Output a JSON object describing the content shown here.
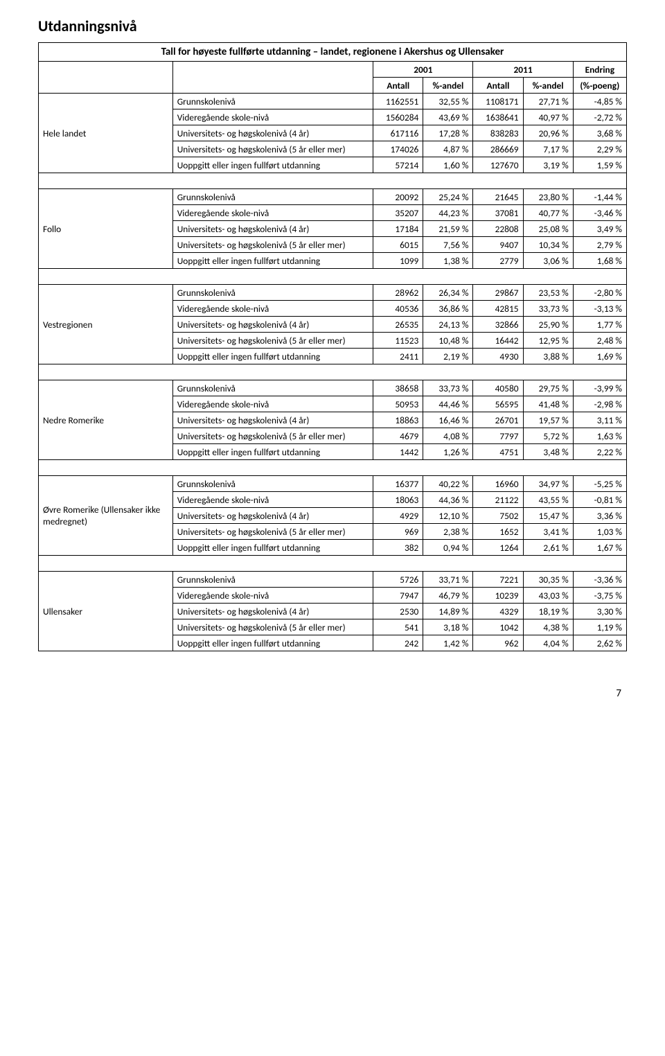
{
  "page_title": "Utdanningsnivå",
  "table_title": "Tall for høyeste fullførte utdanning – landet, regionene i Akershus og Ullensaker",
  "headers": {
    "year1": "2001",
    "year2": "2011",
    "endring": "Endring",
    "antall": "Antall",
    "andel": "%-andel",
    "poeng": "(%-poeng)"
  },
  "row_labels": {
    "grunn": "Grunnskolenivå",
    "vgs": "Videregående skole-nivå",
    "uh4": "Universitets- og høgskolenivå (4 år)",
    "uh5": "Universitets- og høgskolenivå (5 år eller mer)",
    "uopp": "Uoppgitt eller ingen fullført utdanning"
  },
  "regions": [
    {
      "name": "Hele landet",
      "rows": [
        [
          "grunn",
          "1162551",
          "32,55 %",
          "1108171",
          "27,71 %",
          "-4,85 %"
        ],
        [
          "vgs",
          "1560284",
          "43,69 %",
          "1638641",
          "40,97 %",
          "-2,72 %"
        ],
        [
          "uh4",
          "617116",
          "17,28 %",
          "838283",
          "20,96 %",
          "3,68 %"
        ],
        [
          "uh5",
          "174026",
          "4,87 %",
          "286669",
          "7,17 %",
          "2,29 %"
        ],
        [
          "uopp",
          "57214",
          "1,60 %",
          "127670",
          "3,19 %",
          "1,59 %"
        ]
      ]
    },
    {
      "name": "Follo",
      "rows": [
        [
          "grunn",
          "20092",
          "25,24 %",
          "21645",
          "23,80 %",
          "-1,44 %"
        ],
        [
          "vgs",
          "35207",
          "44,23 %",
          "37081",
          "40,77 %",
          "-3,46 %"
        ],
        [
          "uh4",
          "17184",
          "21,59 %",
          "22808",
          "25,08 %",
          "3,49 %"
        ],
        [
          "uh5",
          "6015",
          "7,56 %",
          "9407",
          "10,34 %",
          "2,79 %"
        ],
        [
          "uopp",
          "1099",
          "1,38 %",
          "2779",
          "3,06 %",
          "1,68 %"
        ]
      ]
    },
    {
      "name": "Vestregionen",
      "rows": [
        [
          "grunn",
          "28962",
          "26,34 %",
          "29867",
          "23,53 %",
          "-2,80 %"
        ],
        [
          "vgs",
          "40536",
          "36,86 %",
          "42815",
          "33,73 %",
          "-3,13 %"
        ],
        [
          "uh4",
          "26535",
          "24,13 %",
          "32866",
          "25,90 %",
          "1,77 %"
        ],
        [
          "uh5",
          "11523",
          "10,48 %",
          "16442",
          "12,95 %",
          "2,48 %"
        ],
        [
          "uopp",
          "2411",
          "2,19 %",
          "4930",
          "3,88 %",
          "1,69 %"
        ]
      ]
    },
    {
      "name": "Nedre Romerike",
      "rows": [
        [
          "grunn",
          "38658",
          "33,73 %",
          "40580",
          "29,75 %",
          "-3,99 %"
        ],
        [
          "vgs",
          "50953",
          "44,46 %",
          "56595",
          "41,48 %",
          "-2,98 %"
        ],
        [
          "uh4",
          "18863",
          "16,46 %",
          "26701",
          "19,57 %",
          "3,11 %"
        ],
        [
          "uh5",
          "4679",
          "4,08 %",
          "7797",
          "5,72 %",
          "1,63 %"
        ],
        [
          "uopp",
          "1442",
          "1,26 %",
          "4751",
          "3,48 %",
          "2,22 %"
        ]
      ]
    },
    {
      "name": "Øvre Romerike (Ullensaker ikke medregnet)",
      "rows": [
        [
          "grunn",
          "16377",
          "40,22 %",
          "16960",
          "34,97 %",
          "-5,25 %"
        ],
        [
          "vgs",
          "18063",
          "44,36 %",
          "21122",
          "43,55 %",
          "-0,81 %"
        ],
        [
          "uh4",
          "4929",
          "12,10 %",
          "7502",
          "15,47 %",
          "3,36 %"
        ],
        [
          "uh5",
          "969",
          "2,38 %",
          "1652",
          "3,41 %",
          "1,03 %"
        ],
        [
          "uopp",
          "382",
          "0,94 %",
          "1264",
          "2,61 %",
          "1,67 %"
        ]
      ]
    },
    {
      "name": "Ullensaker",
      "rows": [
        [
          "grunn",
          "5726",
          "33,71 %",
          "7221",
          "30,35 %",
          "-3,36 %"
        ],
        [
          "vgs",
          "7947",
          "46,79 %",
          "10239",
          "43,03 %",
          "-3,75 %"
        ],
        [
          "uh4",
          "2530",
          "14,89 %",
          "4329",
          "18,19 %",
          "3,30 %"
        ],
        [
          "uh5",
          "541",
          "3,18 %",
          "1042",
          "4,38 %",
          "1,19 %"
        ],
        [
          "uopp",
          "242",
          "1,42 %",
          "962",
          "4,04 %",
          "2,62 %"
        ]
      ]
    }
  ],
  "page_number": "7"
}
